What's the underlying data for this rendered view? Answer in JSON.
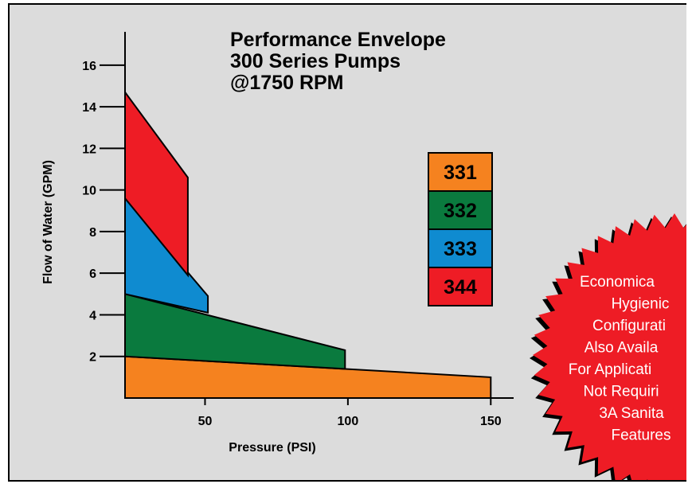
{
  "chart_data": {
    "type": "area",
    "title_lines": [
      "Performance Envelope",
      "300 Series Pumps",
      "@1750 RPM"
    ],
    "xlabel": "Pressure (PSI)",
    "ylabel": "Flow of Water (GPM)",
    "xlim": [
      22,
      158
    ],
    "ylim": [
      0,
      17.6
    ],
    "x_ticks": [
      50,
      100,
      150
    ],
    "y_ticks": [
      2,
      4,
      6,
      8,
      10,
      12,
      14,
      16
    ],
    "grid": false,
    "legend_position": "center-right",
    "series": [
      {
        "name": "331",
        "color": "#f5821f",
        "polygon": [
          [
            22,
            0
          ],
          [
            22,
            2
          ],
          [
            150,
            1
          ],
          [
            150,
            0
          ]
        ]
      },
      {
        "name": "332",
        "color": "#0a7a3e",
        "polygon": [
          [
            22,
            2
          ],
          [
            22,
            5
          ],
          [
            99,
            2.3
          ],
          [
            99,
            1.4
          ]
        ]
      },
      {
        "name": "333",
        "color": "#0f8bd0",
        "polygon": [
          [
            22,
            5
          ],
          [
            22,
            9.6
          ],
          [
            51,
            4.9
          ],
          [
            51,
            4.1
          ]
        ]
      },
      {
        "name": "344",
        "color": "#ee1c25",
        "polygon": [
          [
            22,
            9.6
          ],
          [
            22,
            14.7
          ],
          [
            44,
            10.6
          ],
          [
            44,
            5.9
          ]
        ]
      }
    ]
  },
  "badge": {
    "lines": [
      "Economica",
      "Hygienic",
      "Configurati",
      "Also Availa",
      "For Applicati",
      "Not Requiri",
      "3A Sanita",
      "Features"
    ],
    "color": "#ee1c25"
  }
}
